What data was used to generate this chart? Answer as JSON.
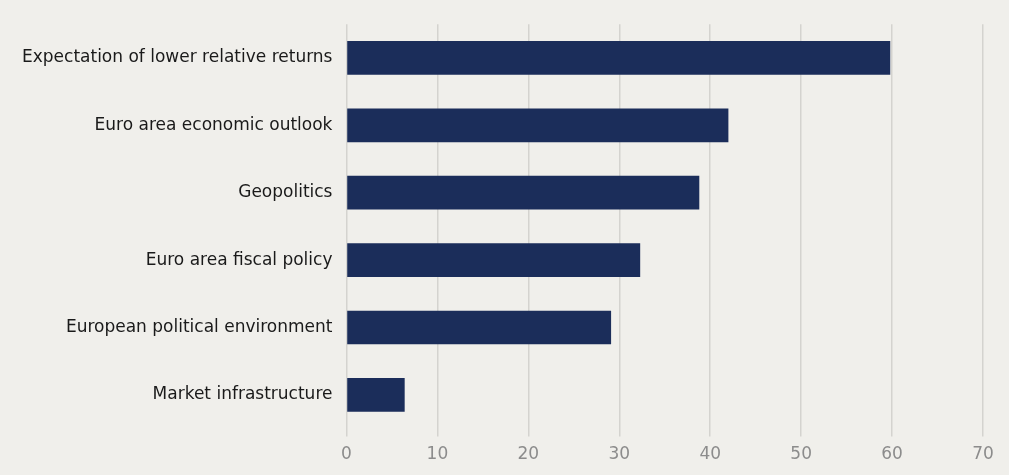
{
  "chart_data": {
    "type": "bar",
    "orientation": "horizontal",
    "categories": [
      "Expectation of lower relative returns",
      "Euro area economic outlook",
      "Geopolitics",
      "Euro area fiscal policy",
      "European political environment",
      "Market infrastructure"
    ],
    "values": [
      59.8,
      42.0,
      38.8,
      32.3,
      29.1,
      6.4
    ],
    "color": "#1b2d5a",
    "xlim": [
      0,
      70
    ],
    "xticks": [
      0,
      10,
      20,
      30,
      40,
      50,
      60,
      70
    ],
    "grid": "x"
  }
}
